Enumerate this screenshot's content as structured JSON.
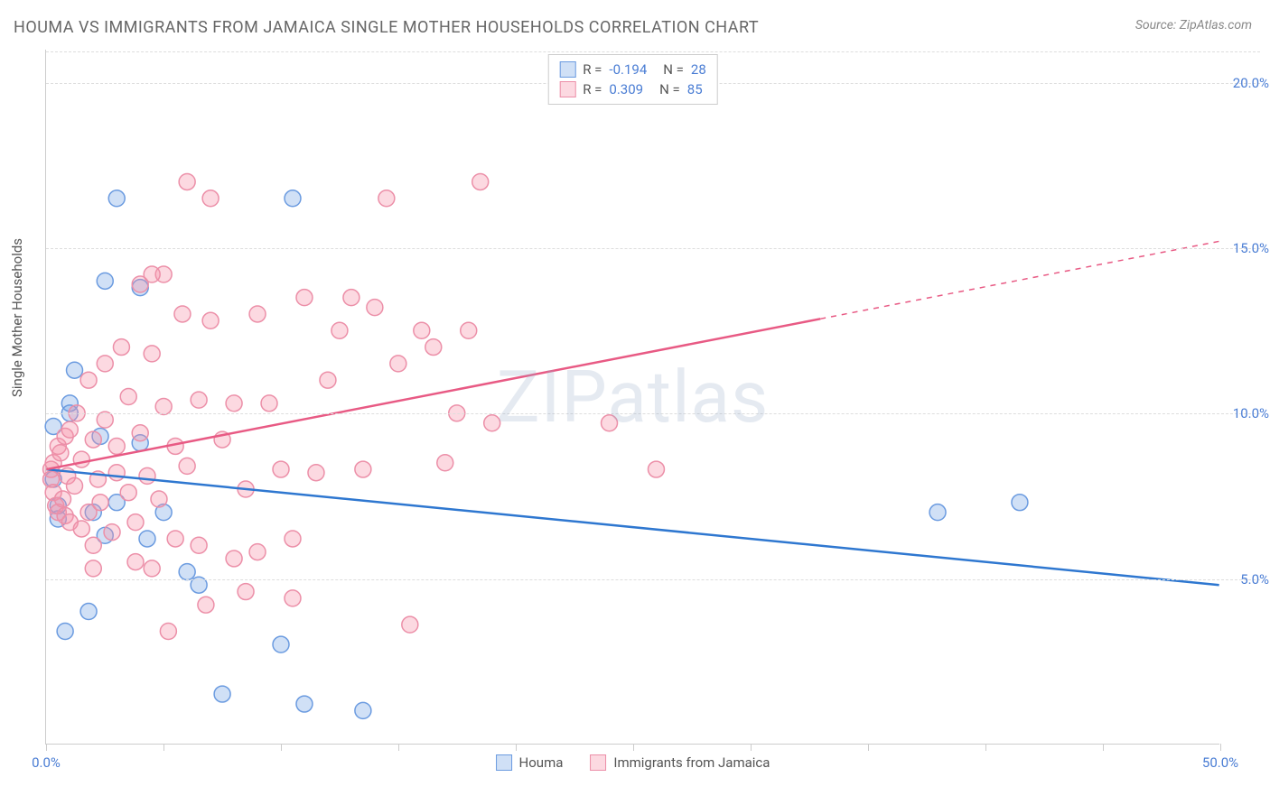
{
  "title": "HOUMA VS IMMIGRANTS FROM JAMAICA SINGLE MOTHER HOUSEHOLDS CORRELATION CHART",
  "source": "Source: ZipAtlas.com",
  "watermark": "ZIPatlas",
  "y_axis_label": "Single Mother Households",
  "chart": {
    "type": "scatter",
    "xlim": [
      0,
      50
    ],
    "ylim": [
      0,
      21
    ],
    "x_ticks": [
      0,
      5,
      10,
      15,
      20,
      25,
      30,
      35,
      40,
      45,
      50
    ],
    "x_tick_labels": {
      "0": "0.0%",
      "50": "50.0%"
    },
    "y_ticks": [
      5,
      10,
      15,
      20
    ],
    "y_tick_labels": [
      "5.0%",
      "10.0%",
      "15.0%",
      "20.0%"
    ],
    "background_color": "#ffffff",
    "grid_color": "#dddddd",
    "axis_color": "#cccccc",
    "marker_radius": 9,
    "marker_stroke_width": 1.5,
    "line_width": 2.5,
    "series": [
      {
        "name": "Houma",
        "fill": "rgba(120,165,230,0.35)",
        "stroke": "#6b9be0",
        "R": "-0.194",
        "N": "28",
        "regression": {
          "x1": 0,
          "y1": 8.3,
          "x2": 50,
          "y2": 4.8,
          "solid_end_x": 50
        },
        "line_color": "#2e77d0",
        "points": [
          [
            0.3,
            9.6
          ],
          [
            0.3,
            8.0
          ],
          [
            0.5,
            7.2
          ],
          [
            0.5,
            6.8
          ],
          [
            0.8,
            3.4
          ],
          [
            1.0,
            10.3
          ],
          [
            1.0,
            10.0
          ],
          [
            1.2,
            11.3
          ],
          [
            1.8,
            4.0
          ],
          [
            2.0,
            7.0
          ],
          [
            2.3,
            9.3
          ],
          [
            2.5,
            6.3
          ],
          [
            2.5,
            14.0
          ],
          [
            3.0,
            16.5
          ],
          [
            3.0,
            7.3
          ],
          [
            4.0,
            9.1
          ],
          [
            4.3,
            6.2
          ],
          [
            5.0,
            7.0
          ],
          [
            6.0,
            5.2
          ],
          [
            6.5,
            4.8
          ],
          [
            7.5,
            1.5
          ],
          [
            10.0,
            3.0
          ],
          [
            10.5,
            16.5
          ],
          [
            11.0,
            1.2
          ],
          [
            13.5,
            1.0
          ],
          [
            38.0,
            7.0
          ],
          [
            41.5,
            7.3
          ],
          [
            4.0,
            13.8
          ]
        ]
      },
      {
        "name": "Immigrants from Jamaica",
        "fill": "rgba(245,145,170,0.35)",
        "stroke": "#ec8fa8",
        "R": "0.309",
        "N": "85",
        "regression": {
          "x1": 0,
          "y1": 8.3,
          "x2": 50,
          "y2": 15.2,
          "solid_end_x": 33
        },
        "line_color": "#e85a84",
        "points": [
          [
            0.2,
            8.3
          ],
          [
            0.2,
            8.0
          ],
          [
            0.3,
            7.6
          ],
          [
            0.3,
            8.5
          ],
          [
            0.4,
            7.2
          ],
          [
            0.5,
            7.0
          ],
          [
            0.5,
            9.0
          ],
          [
            0.6,
            8.8
          ],
          [
            0.7,
            7.4
          ],
          [
            0.8,
            6.9
          ],
          [
            0.8,
            9.3
          ],
          [
            0.9,
            8.1
          ],
          [
            1.0,
            6.7
          ],
          [
            1.0,
            9.5
          ],
          [
            1.2,
            7.8
          ],
          [
            1.3,
            10.0
          ],
          [
            1.5,
            8.6
          ],
          [
            1.5,
            6.5
          ],
          [
            1.8,
            11.0
          ],
          [
            1.8,
            7.0
          ],
          [
            2.0,
            9.2
          ],
          [
            2.0,
            6.0
          ],
          [
            2.2,
            8.0
          ],
          [
            2.3,
            7.3
          ],
          [
            2.5,
            9.8
          ],
          [
            2.5,
            11.5
          ],
          [
            2.8,
            6.4
          ],
          [
            3.0,
            9.0
          ],
          [
            3.0,
            8.2
          ],
          [
            3.2,
            12.0
          ],
          [
            3.5,
            7.6
          ],
          [
            3.5,
            10.5
          ],
          [
            3.8,
            6.7
          ],
          [
            4.0,
            9.4
          ],
          [
            4.0,
            13.9
          ],
          [
            4.3,
            8.1
          ],
          [
            4.5,
            11.8
          ],
          [
            4.5,
            5.3
          ],
          [
            4.8,
            7.4
          ],
          [
            5.0,
            10.2
          ],
          [
            5.0,
            14.2
          ],
          [
            5.5,
            9.0
          ],
          [
            5.5,
            6.2
          ],
          [
            5.8,
            13.0
          ],
          [
            6.0,
            8.4
          ],
          [
            6.0,
            17.0
          ],
          [
            6.5,
            10.4
          ],
          [
            6.5,
            6.0
          ],
          [
            7.0,
            16.5
          ],
          [
            7.0,
            12.8
          ],
          [
            7.5,
            9.2
          ],
          [
            8.0,
            5.6
          ],
          [
            8.0,
            10.3
          ],
          [
            8.5,
            7.7
          ],
          [
            8.5,
            4.6
          ],
          [
            9.0,
            13.0
          ],
          [
            9.0,
            5.8
          ],
          [
            9.5,
            10.3
          ],
          [
            10.0,
            8.3
          ],
          [
            10.5,
            6.2
          ],
          [
            10.5,
            4.4
          ],
          [
            11.0,
            13.5
          ],
          [
            11.5,
            8.2
          ],
          [
            12.0,
            11.0
          ],
          [
            12.5,
            12.5
          ],
          [
            13.0,
            13.5
          ],
          [
            13.5,
            8.3
          ],
          [
            14.0,
            13.2
          ],
          [
            14.5,
            16.5
          ],
          [
            15.0,
            11.5
          ],
          [
            15.5,
            3.6
          ],
          [
            16.0,
            12.5
          ],
          [
            16.5,
            12.0
          ],
          [
            17.0,
            8.5
          ],
          [
            17.5,
            10.0
          ],
          [
            18.0,
            12.5
          ],
          [
            18.5,
            17.0
          ],
          [
            19.0,
            9.7
          ],
          [
            24.0,
            9.7
          ],
          [
            26.0,
            8.3
          ],
          [
            4.5,
            14.2
          ],
          [
            5.2,
            3.4
          ],
          [
            6.8,
            4.2
          ],
          [
            3.8,
            5.5
          ],
          [
            2.0,
            5.3
          ]
        ]
      }
    ]
  },
  "bottom_legend": [
    {
      "label": "Houma",
      "fill": "rgba(120,165,230,0.35)",
      "stroke": "#6b9be0"
    },
    {
      "label": "Immigrants from Jamaica",
      "fill": "rgba(245,145,170,0.35)",
      "stroke": "#ec8fa8"
    }
  ]
}
